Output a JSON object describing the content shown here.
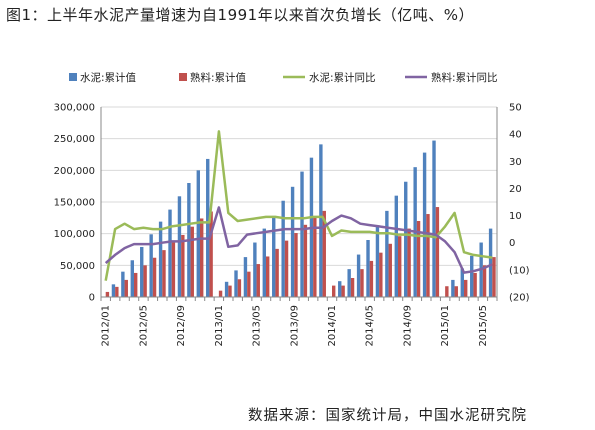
{
  "title": "图1：上半年水泥产量增速为自1991年以来首次负增长（亿吨、%）",
  "source": "数据来源：国家统计局，中国水泥研究院",
  "colors": {
    "cement_bar": "#4F81BD",
    "clinker_bar": "#C0504D",
    "cement_line": "#9BBB59",
    "clinker_line": "#8064A2",
    "neg_label": "#C0504D"
  },
  "chart_data": {
    "type": "bar",
    "title": "",
    "categories": [
      "2012/01",
      "2012/02",
      "2012/03",
      "2012/04",
      "2012/05",
      "2012/06",
      "2012/07",
      "2012/08",
      "2012/09",
      "2012/10",
      "2012/11",
      "2012/12",
      "2013/01",
      "2013/02",
      "2013/03",
      "2013/04",
      "2013/05",
      "2013/06",
      "2013/07",
      "2013/08",
      "2013/09",
      "2013/10",
      "2013/11",
      "2013/12",
      "2014/01",
      "2014/02",
      "2014/03",
      "2014/04",
      "2014/05",
      "2014/06",
      "2014/07",
      "2014/08",
      "2014/09",
      "2014/10",
      "2014/11",
      "2014/12",
      "2015/01",
      "2015/02",
      "2015/03",
      "2015/04",
      "2015/05",
      "2015/06"
    ],
    "x_tick_labels": [
      "2012/01",
      "2012/05",
      "2012/09",
      "2013/01",
      "2013/05",
      "2013/09",
      "2014/01",
      "2014/05",
      "2014/09",
      "2015/01",
      "2015/05"
    ],
    "y_left": {
      "ticks": [
        "0",
        "50,000",
        "100,000",
        "150,000",
        "200,000",
        "250,000",
        "300,000"
      ],
      "lim": [
        0,
        300000
      ]
    },
    "y_right": {
      "ticks": [
        "(20)",
        "(10)",
        "0",
        "10",
        "20",
        "30",
        "40",
        "50"
      ],
      "lim": [
        -20,
        50
      ]
    },
    "series": [
      {
        "name": "水泥:累计值",
        "kind": "bar",
        "axis": "left",
        "values": [
          null,
          20000,
          40000,
          58000,
          79000,
          99000,
          119000,
          138000,
          159000,
          180000,
          200000,
          218000,
          null,
          24000,
          42000,
          63000,
          86000,
          108000,
          128000,
          152000,
          174000,
          198000,
          220000,
          241000,
          null,
          25000,
          44000,
          67000,
          90000,
          113000,
          136000,
          160000,
          182000,
          205000,
          228000,
          247000,
          null,
          27000,
          45000,
          65000,
          86000,
          108000
        ]
      },
      {
        "name": "熟料:累计值",
        "kind": "bar",
        "axis": "left",
        "values": [
          8000,
          16000,
          27000,
          38000,
          50000,
          62000,
          74000,
          86000,
          98000,
          111000,
          124000,
          135000,
          10000,
          18000,
          28000,
          40000,
          52000,
          64000,
          76000,
          89000,
          101000,
          114000,
          126000,
          136000,
          18000,
          18000,
          30000,
          44000,
          57000,
          70000,
          84000,
          96000,
          108000,
          120000,
          131000,
          142000,
          17000,
          17000,
          27000,
          38000,
          50000,
          63000
        ]
      },
      {
        "name": "水泥:累计同比",
        "kind": "line",
        "axis": "right",
        "values": [
          -14,
          5,
          7,
          5,
          5.5,
          5,
          5,
          6,
          6.5,
          7,
          7.5,
          7.5,
          41,
          11,
          8,
          8.5,
          9,
          9.5,
          9.5,
          9,
          9,
          9,
          9.5,
          9.5,
          2.5,
          4.5,
          4,
          4,
          4,
          3.5,
          3.5,
          3,
          3,
          2.5,
          2.5,
          2,
          6,
          11,
          -3.5,
          -4.5,
          -5,
          -5.5
        ]
      },
      {
        "name": "熟料:累计同比",
        "kind": "line",
        "axis": "right",
        "values": [
          -7.5,
          -4.5,
          -2,
          -0.5,
          -0.5,
          -0.5,
          0,
          0.5,
          0.5,
          1,
          1.5,
          1.5,
          13,
          -1.5,
          -1,
          3,
          3.5,
          4,
          4.5,
          5,
          5,
          5,
          5.5,
          5.5,
          8,
          10,
          9,
          7,
          6.5,
          6,
          5.5,
          5,
          4.5,
          4,
          3.5,
          3,
          0.5,
          -3.5,
          -11,
          -10.5,
          -9.5,
          -8
        ]
      }
    ],
    "legend_position": "top",
    "grid": "y-major"
  }
}
